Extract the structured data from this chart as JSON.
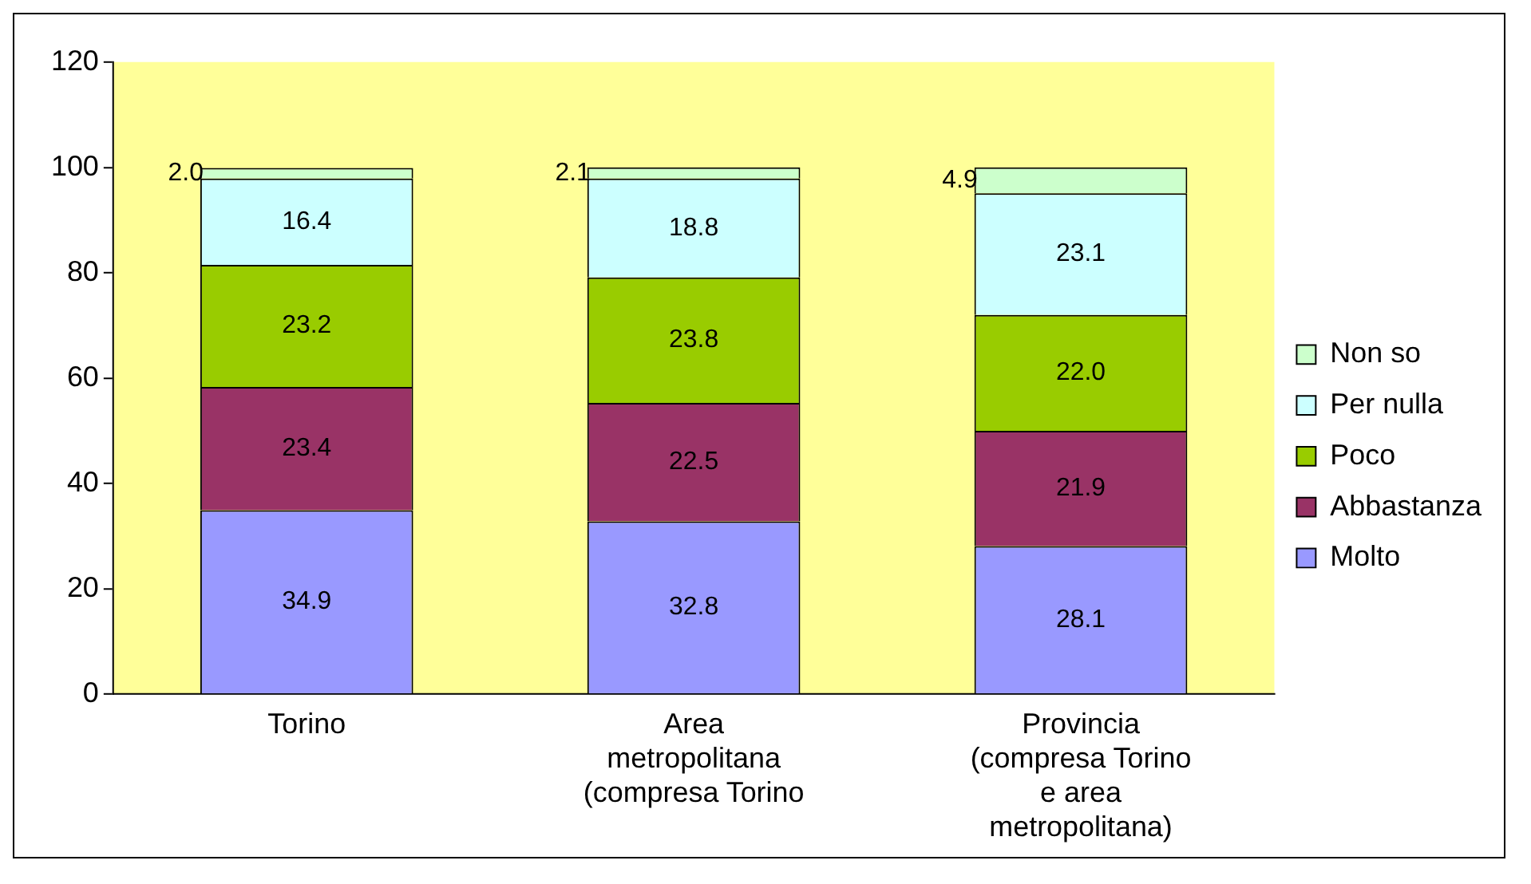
{
  "chart_data": {
    "type": "bar",
    "stacked": true,
    "categories": [
      "Torino",
      "Area metropolitana (compresa Torino",
      "Provincia (compresa Torino e area metropolitana)"
    ],
    "series": [
      {
        "name": "Molto",
        "color": "#9999ff",
        "values": [
          34.9,
          32.8,
          28.1
        ],
        "value_labels": [
          "34.9",
          "32.8",
          "28.1"
        ]
      },
      {
        "name": "Abbastanza",
        "color": "#993366",
        "values": [
          23.4,
          22.5,
          21.9
        ],
        "value_labels": [
          "23.4",
          "22.5",
          "21.9"
        ]
      },
      {
        "name": "Poco",
        "color": "#99cc00",
        "values": [
          23.2,
          23.8,
          22
        ],
        "value_labels": [
          "23.2",
          "23.8",
          "22.0"
        ]
      },
      {
        "name": "Per nulla",
        "color": "#ccffff",
        "values": [
          16.4,
          18.8,
          23.1
        ],
        "value_labels": [
          "16.4",
          "18.8",
          "23.1"
        ]
      },
      {
        "name": "Non so",
        "color": "#ccffcc",
        "values": [
          2,
          2.1,
          4.9
        ],
        "value_labels": [
          "2.0",
          "2.1",
          "4.9"
        ]
      }
    ],
    "ylim": [
      0,
      120
    ],
    "yticks": [
      0,
      20,
      40,
      60,
      80,
      100,
      120
    ],
    "grid": false,
    "legend": "right"
  }
}
